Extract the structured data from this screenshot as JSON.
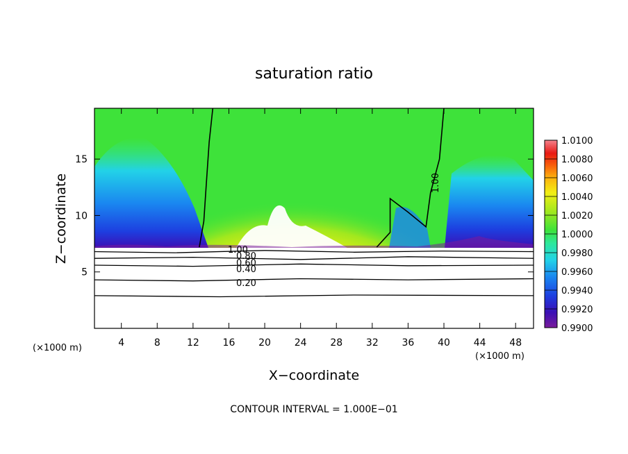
{
  "chart_data": {
    "type": "heatmap",
    "title": "saturation ratio",
    "xlabel": "X−coordinate",
    "ylabel": "Z−coordinate",
    "x_unit_left": "(×1000 m)",
    "x_unit_right": "(×1000 m)",
    "footer": "CONTOUR INTERVAL = 1.000E−01",
    "xlim": [
      1,
      50
    ],
    "ylim": [
      0,
      19.5
    ],
    "x_ticks": [
      "4",
      "8",
      "12",
      "16",
      "20",
      "24",
      "28",
      "32",
      "36",
      "40",
      "44",
      "48"
    ],
    "y_ticks": [
      "5",
      "10",
      "15"
    ],
    "colorbar": {
      "range": [
        0.99,
        1.01
      ],
      "labels": [
        "1.0100",
        "1.0080",
        "1.0060",
        "1.0040",
        "1.0020",
        "1.0000",
        "0.9980",
        "0.9960",
        "0.9940",
        "0.9920",
        "0.9900"
      ],
      "colors": [
        "#7a1c9c",
        "#3c0fb4",
        "#1d3fe0",
        "#1a86f0",
        "#22d2e8",
        "#2ee89c",
        "#3ee23a",
        "#a2e81e",
        "#f2ee14",
        "#fcb20e",
        "#f85a0c",
        "#e81a14",
        "#f4828c"
      ]
    },
    "contour_labels": [
      "1.00",
      "0.80",
      "0.60",
      "0.40",
      "0.20",
      "1.00"
    ],
    "series": [
      {
        "name": "1.00",
        "values": [
          [
            12.7,
            7.2
          ],
          [
            13.2,
            9.5
          ],
          [
            13.5,
            13
          ],
          [
            13.8,
            16.5
          ],
          [
            14.2,
            19.5
          ]
        ]
      },
      {
        "name": "1.00",
        "values": [
          [
            32.5,
            7.2
          ],
          [
            34,
            8.5
          ],
          [
            34,
            11.5
          ],
          [
            36,
            10.3
          ],
          [
            38,
            9
          ],
          [
            38.5,
            12
          ],
          [
            39.5,
            15
          ],
          [
            40,
            19.5
          ]
        ]
      },
      {
        "name": "0.80",
        "values": [
          [
            1,
            6.8
          ],
          [
            10,
            6.7
          ],
          [
            20,
            6.9
          ],
          [
            30,
            6.75
          ],
          [
            40,
            6.85
          ],
          [
            50,
            6.8
          ]
        ]
      },
      {
        "name": "0.60",
        "values": [
          [
            1,
            6.2
          ],
          [
            12,
            6.3
          ],
          [
            24,
            6.1
          ],
          [
            36,
            6.35
          ],
          [
            50,
            6.2
          ]
        ]
      },
      {
        "name": "0.40",
        "values": [
          [
            1,
            5.6
          ],
          [
            12,
            5.5
          ],
          [
            24,
            5.7
          ],
          [
            36,
            5.55
          ],
          [
            50,
            5.6
          ]
        ]
      },
      {
        "name": "0.20",
        "values": [
          [
            1,
            4.3
          ],
          [
            12,
            4.2
          ],
          [
            24,
            4.4
          ],
          [
            36,
            4.3
          ],
          [
            50,
            4.4
          ]
        ]
      },
      {
        "name": "",
        "values": [
          [
            1,
            2.9
          ],
          [
            15,
            2.8
          ],
          [
            30,
            2.95
          ],
          [
            50,
            2.9
          ]
        ]
      }
    ]
  }
}
